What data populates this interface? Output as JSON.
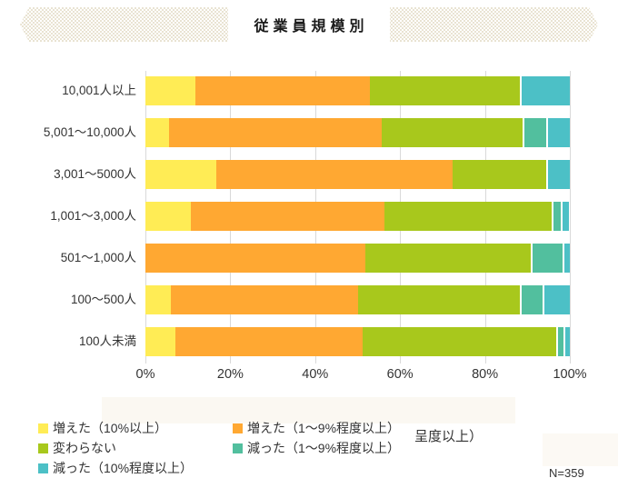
{
  "banner": {
    "title": "従業員規模別"
  },
  "chart_data": {
    "type": "bar",
    "orientation": "horizontal",
    "stacked": true,
    "unit": "%",
    "xlim": [
      0,
      100
    ],
    "x_ticks": [
      "0%",
      "20%",
      "40%",
      "60%",
      "80%",
      "100%"
    ],
    "grid": true,
    "legend_position": "bottom",
    "categories": [
      "10,001人以上",
      "5,001～10,000人",
      "3,001～5000人",
      "1,001～3,000人",
      "501～1,000人",
      "100～500人",
      "100人未満"
    ],
    "series": [
      {
        "key": "inc10",
        "name": "増えた（10%以上）",
        "color": "#ffec55",
        "values": [
          11.8,
          5.6,
          16.7,
          10.6,
          0,
          6.1,
          7.1
        ]
      },
      {
        "key": "inc1to9",
        "name": "増えた（1～9%程度以上）",
        "color": "#ffa832",
        "values": [
          41.2,
          50,
          55.6,
          45.7,
          51.9,
          44,
          44.1
        ]
      },
      {
        "key": "same",
        "name": "変わらない",
        "color": "#a8c81c",
        "values": [
          35.3,
          33.3,
          22.2,
          39.4,
          38.9,
          38.1,
          45.6
        ]
      },
      {
        "key": "dec1to9",
        "name": "減った（1～9%程度以上）",
        "color": "#52bf9e",
        "values": [
          0,
          5.6,
          0,
          2.1,
          7.4,
          5.3,
          1.6
        ]
      },
      {
        "key": "dec10",
        "name": "減った（10%程度以上）",
        "color": "#4cc0c6",
        "values": [
          11.8,
          5.6,
          5.6,
          2.1,
          1.9,
          6.5,
          1.6
        ]
      }
    ],
    "sample_label": "N=359"
  },
  "legend": {
    "artifact_text": "呈度以上）"
  },
  "colors": {
    "gridline": "#d9d9d9",
    "banner_hatch": "#e9e3d2",
    "text": "#333333"
  }
}
